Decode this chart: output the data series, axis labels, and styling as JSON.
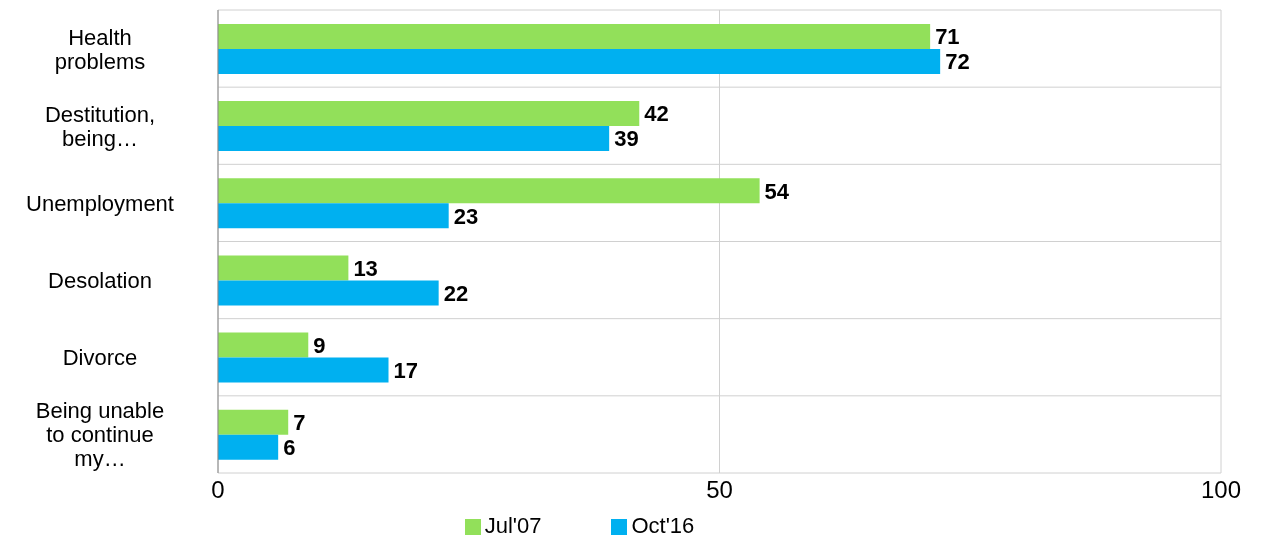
{
  "chart_data": {
    "type": "bar",
    "orientation": "horizontal",
    "categories": [
      "Health problems",
      "Destitution, being…",
      "Unemployment",
      "Desolation",
      "Divorce",
      "Being unable to continue my…"
    ],
    "series": [
      {
        "name": "Jul'07",
        "color": "#92e05a",
        "values": [
          71,
          42,
          54,
          13,
          9,
          7
        ]
      },
      {
        "name": "Oct'16",
        "color": "#00b0f0",
        "values": [
          72,
          39,
          23,
          22,
          17,
          6
        ]
      }
    ],
    "xlim": [
      0,
      100
    ],
    "xticks": [
      0,
      50,
      100
    ],
    "grid": true,
    "legend": "bottom",
    "data_labels": true
  }
}
